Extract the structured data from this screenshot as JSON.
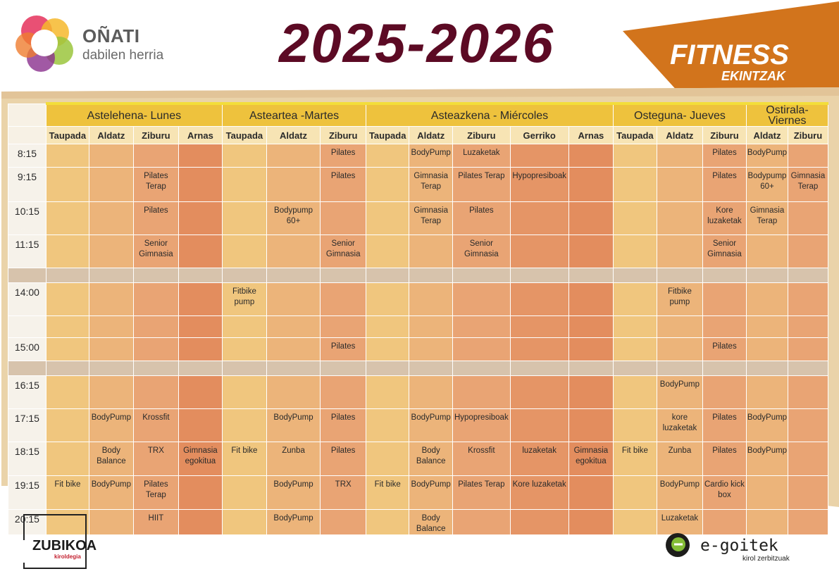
{
  "header": {
    "brand_name": "OÑATI",
    "brand_sub": "dabilen herria",
    "year": "2025-2026",
    "fitness_title": "FITNESS",
    "fitness_sub": "EKINTZAK"
  },
  "days": [
    {
      "name": "Astelehena- Lunes",
      "columns": [
        "Taupada",
        "Aldatz",
        "Ziburu",
        "Arnas"
      ]
    },
    {
      "name": "Asteartea -Martes",
      "columns": [
        "Taupada",
        "Aldatz",
        "Ziburu"
      ]
    },
    {
      "name": "Asteazkena - Miércoles",
      "columns": [
        "Taupada",
        "Aldatz",
        "Ziburu",
        "Gerriko",
        "Arnas"
      ]
    },
    {
      "name": "Osteguna- Jueves",
      "columns": [
        "Taupada",
        "Aldatz",
        "Ziburu"
      ]
    },
    {
      "name": "Ostirala- Viernes",
      "columns": [
        "Aldatz",
        "Ziburu"
      ]
    }
  ],
  "times": [
    "8:15",
    "9:15",
    "10:15",
    "11:15",
    "14:00",
    "15:00",
    "16:15",
    "17:15",
    "18:15",
    "19:15",
    "20:15"
  ],
  "schedule": {
    "r815": [
      "",
      "",
      "",
      "",
      "",
      "",
      "Pilates",
      "",
      "BodyPump",
      "Luzaketak",
      "",
      "",
      "",
      "",
      "Pilates",
      "BodyPump",
      ""
    ],
    "r915": [
      "",
      "",
      "Pilates Terap",
      "",
      "",
      "",
      "Pilates",
      "",
      "Gimnasia Terap",
      "Pilates Terap",
      "Hypopresiboak",
      "",
      "",
      "",
      "Pilates",
      "Bodypump 60+",
      "Gimnasia Terap"
    ],
    "r1015": [
      "",
      "",
      "Pilates",
      "",
      "",
      "Bodypump 60+",
      "",
      "",
      "Gimnasia Terap",
      "Pilates",
      "",
      "",
      "",
      "",
      "Kore luzaketak",
      "Gimnasia Terap",
      ""
    ],
    "r1115": [
      "",
      "",
      "Senior Gimnasia",
      "",
      "",
      "",
      "Senior Gimnasia",
      "",
      "",
      "Senior Gimnasia",
      "",
      "",
      "",
      "",
      "Senior Gimnasia",
      "",
      ""
    ],
    "r1400": [
      "",
      "",
      "",
      "",
      "Fitbike pump",
      "",
      "",
      "",
      "",
      "",
      "",
      "",
      "",
      "Fitbike pump",
      "",
      "",
      ""
    ],
    "r1500": [
      "",
      "",
      "",
      "",
      "",
      "",
      "Pilates",
      "",
      "",
      "",
      "",
      "",
      "",
      "",
      "Pilates",
      "",
      ""
    ],
    "r1615": [
      "",
      "",
      "",
      "",
      "",
      "",
      "",
      "",
      "",
      "",
      "",
      "",
      "",
      "BodyPump",
      "",
      "",
      ""
    ],
    "r1715": [
      "",
      "BodyPump",
      "Krossfit",
      "",
      "",
      "BodyPump",
      "Pilates",
      "",
      "BodyPump",
      "Hypopresiboak",
      "",
      "",
      "",
      "kore luzaketak",
      "Pilates",
      "BodyPump",
      ""
    ],
    "r1815": [
      "",
      "Body Balance",
      "TRX",
      "Gimnasia egokitua",
      "Fit bike",
      "Zunba",
      "Pilates",
      "",
      "Body Balance",
      "Krossfit",
      "luzaketak",
      "Gimnasia egokitua",
      "Fit bike",
      "Zunba",
      "Pilates",
      "BodyPump",
      ""
    ],
    "r1915": [
      "Fit bike",
      "BodyPump",
      "Pilates Terap",
      "",
      "",
      "BodyPump",
      "TRX",
      "Fit bike",
      "BodyPump",
      "Pilates Terap",
      "Kore luzaketak",
      "",
      "",
      "BodyPump",
      "Cardio kick box",
      "",
      ""
    ],
    "r2015": [
      "",
      "",
      "HIIT",
      "",
      "",
      "BodyPump",
      "",
      "",
      "Body Balance",
      "",
      "",
      "",
      "",
      "Luzaketak",
      "",
      "",
      ""
    ]
  },
  "footer": {
    "zubikoa": "ZUBIKOA",
    "zubikoa_sub": "kiroldegia",
    "egoitek": "e-goitek",
    "egoitek_sub": "kirol zerbitzuak"
  },
  "colors": {
    "title": "#5c0a24",
    "banner": "#d2741c",
    "day_header": "#eec23d"
  }
}
